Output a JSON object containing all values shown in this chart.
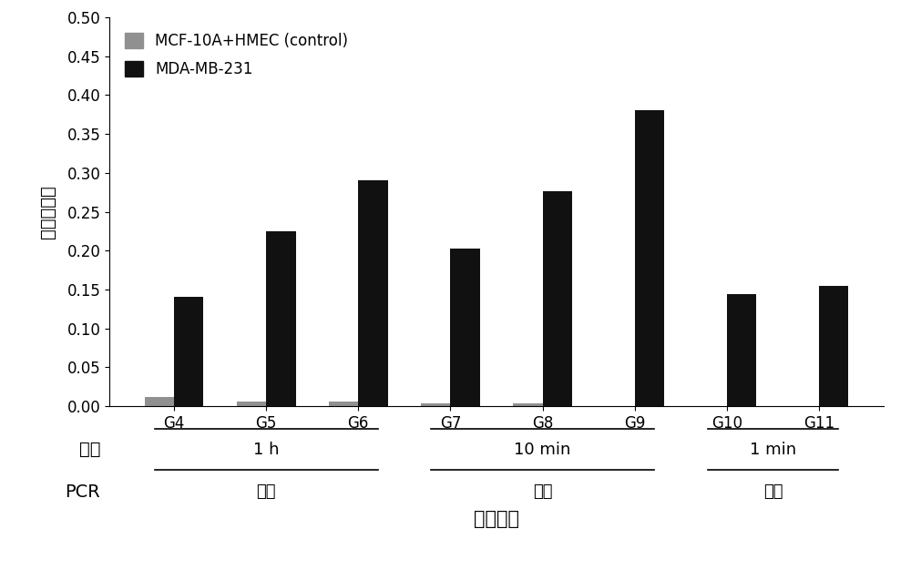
{
  "categories": [
    "G4",
    "G5",
    "G6",
    "G7",
    "G8",
    "G9",
    "G10",
    "G11"
  ],
  "control_values": [
    0.012,
    0.006,
    0.006,
    0.003,
    0.003,
    0.0,
    0.0,
    0.0
  ],
  "target_values": [
    0.141,
    0.225,
    0.29,
    0.202,
    0.276,
    0.381,
    0.144,
    0.155
  ],
  "control_color": "#909090",
  "target_color": "#111111",
  "ylabel": "切割百分比",
  "xlabel": "筛选轮数",
  "ylim": [
    0,
    0.5
  ],
  "yticks": [
    0.0,
    0.05,
    0.1,
    0.15,
    0.2,
    0.25,
    0.3,
    0.35,
    0.4,
    0.45,
    0.5
  ],
  "legend_control": "MCF-10A+HMEC (control)",
  "legend_target": "MDA-MB-231",
  "time_groups": [
    {
      "label": "1 h",
      "start": 0,
      "end": 2
    },
    {
      "label": "10 min",
      "start": 3,
      "end": 5
    },
    {
      "label": "1 min",
      "start": 6,
      "end": 7
    }
  ],
  "pcr_groups": [
    {
      "label": "正常",
      "start": 0,
      "end": 2
    },
    {
      "label": "突变",
      "start": 3,
      "end": 5
    },
    {
      "label": "正常",
      "start": 6,
      "end": 7
    }
  ],
  "time_label": "时间",
  "pcr_label": "PCR",
  "bar_width": 0.32,
  "background_color": "#ffffff",
  "axis_fontsize": 14,
  "tick_fontsize": 12,
  "legend_fontsize": 12,
  "annot_fontsize": 13
}
